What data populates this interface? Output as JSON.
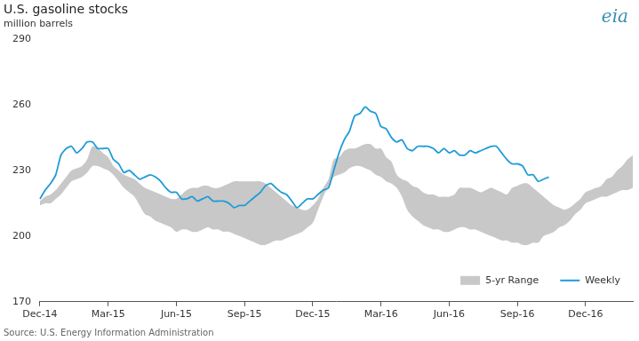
{
  "chart_data": {
    "type": "line",
    "title": "U.S. gasoline stocks",
    "subtitle": "million barrels",
    "source": "Source: U.S. Energy Information Administration",
    "logo": "eia",
    "categories": [
      "Dec-14",
      null,
      null,
      null,
      null,
      null,
      null,
      null,
      null,
      null,
      null,
      null,
      null,
      "Mar-15",
      null,
      null,
      null,
      null,
      null,
      null,
      null,
      null,
      null,
      null,
      null,
      null,
      "Jun-15",
      null,
      null,
      null,
      null,
      null,
      null,
      null,
      null,
      null,
      null,
      null,
      null,
      "Sep-15",
      null,
      null,
      null,
      null,
      null,
      null,
      null,
      null,
      null,
      null,
      null,
      null,
      "Dec-15",
      null,
      null,
      null,
      null,
      null,
      null,
      null,
      null,
      null,
      null,
      null,
      null,
      "Mar-16",
      null,
      null,
      null,
      null,
      null,
      null,
      null,
      null,
      null,
      null,
      null,
      null,
      "Jun-16",
      null,
      null,
      null,
      null,
      null,
      null,
      null,
      null,
      null,
      null,
      null,
      null,
      "Sep-16",
      null,
      null,
      null,
      null,
      null,
      null,
      null,
      null,
      null,
      null,
      null,
      null,
      "Dec-16",
      null,
      null,
      null,
      null,
      null,
      null,
      null,
      null,
      null
    ],
    "series": [
      {
        "name": "5-yr Range",
        "type": "range",
        "color": "#c8c8c8",
        "low": [
          214,
          215,
          215,
          217,
          219,
          222,
          225,
          226,
          227,
          229,
          232,
          232,
          231,
          230,
          228,
          225,
          222,
          220,
          218,
          214,
          210,
          209,
          207,
          206,
          205,
          204,
          202,
          203,
          203,
          202,
          202,
          203,
          204,
          203,
          203,
          202,
          202,
          201,
          200,
          199,
          198,
          197,
          196,
          196,
          197,
          198,
          198,
          199,
          200,
          201,
          202,
          204,
          206,
          212,
          218,
          223,
          227,
          228,
          229,
          231,
          232,
          232,
          231,
          230,
          228,
          227,
          225,
          224,
          222,
          218,
          212,
          209,
          207,
          205,
          204,
          203,
          203,
          202,
          202,
          203,
          204,
          204,
          203,
          203,
          202,
          201,
          200,
          199,
          198,
          198,
          197,
          197,
          196,
          196,
          197,
          197,
          200,
          201,
          202,
          204,
          205,
          207,
          210,
          212,
          215,
          216,
          217,
          218,
          218,
          219,
          220,
          221,
          221,
          222
        ],
        "high": [
          216,
          218,
          219,
          221,
          224,
          227,
          230,
          231,
          232,
          235,
          241,
          240,
          238,
          236,
          232,
          230,
          228,
          227,
          226,
          224,
          222,
          221,
          220,
          219,
          218,
          217,
          217,
          219,
          221,
          222,
          222,
          223,
          223,
          222,
          222,
          223,
          224,
          225,
          225,
          225,
          225,
          225,
          225,
          224,
          222,
          220,
          218,
          216,
          214,
          213,
          212,
          212,
          214,
          217,
          222,
          226,
          235,
          236,
          239,
          240,
          240,
          241,
          242,
          242,
          240,
          240,
          236,
          234,
          228,
          226,
          225,
          223,
          222,
          220,
          219,
          219,
          218,
          218,
          218,
          219,
          222,
          222,
          222,
          221,
          220,
          221,
          222,
          221,
          220,
          219,
          222,
          223,
          224,
          224,
          222,
          220,
          218,
          216,
          214,
          213,
          212,
          213,
          215,
          217,
          220,
          221,
          222,
          223,
          226,
          227,
          230,
          232,
          235,
          237
        ]
      },
      {
        "name": "Weekly",
        "type": "line",
        "color": "#1f9bd7",
        "values": [
          217,
          221,
          224,
          228,
          237,
          240,
          241,
          238,
          240,
          243,
          243,
          240,
          240,
          240,
          235,
          233,
          229,
          230,
          228,
          226,
          227,
          228,
          227,
          225,
          222,
          220,
          220,
          217,
          217,
          218,
          216,
          217,
          218,
          216,
          216,
          216,
          215,
          213,
          214,
          214,
          216,
          218,
          220,
          223,
          224,
          222,
          220,
          219,
          216,
          213,
          215,
          217,
          217,
          219,
          221,
          222,
          230,
          238,
          244,
          248,
          255,
          256,
          259,
          257,
          256,
          250,
          249,
          245,
          243,
          244,
          240,
          239,
          241,
          241,
          241,
          240,
          238,
          240,
          238,
          239,
          237,
          237,
          239,
          238,
          239,
          240,
          241,
          241,
          238,
          235,
          233,
          233,
          232,
          228,
          228,
          225,
          226,
          227,
          null,
          null,
          null,
          null,
          null,
          null,
          null,
          null,
          null,
          null,
          null,
          null,
          null,
          null,
          null,
          null
        ]
      }
    ],
    "ylim": [
      170,
      290
    ],
    "yticks": [
      170,
      200,
      230,
      260,
      290
    ],
    "grid": false,
    "legend": "lower right"
  }
}
